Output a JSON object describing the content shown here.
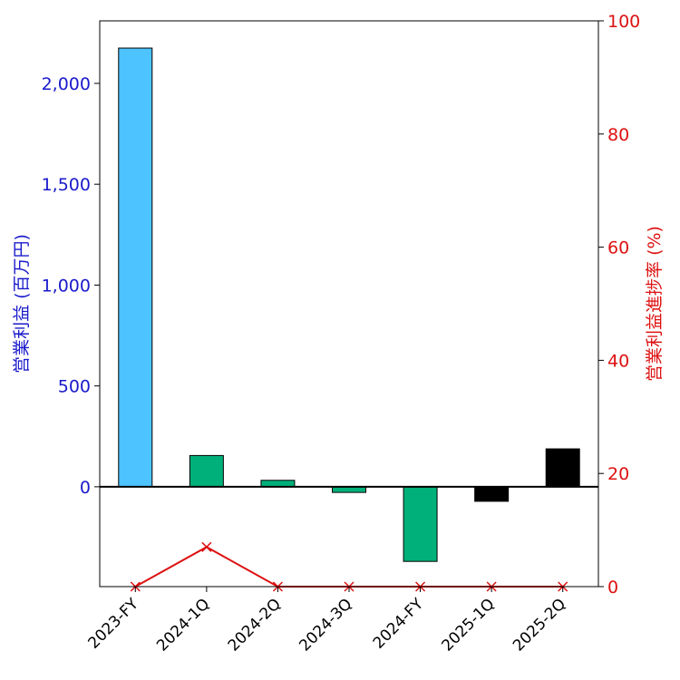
{
  "chart_data": {
    "type": "bar",
    "categories": [
      "2023-FY",
      "2024-1Q",
      "2024-2Q",
      "2024-3Q",
      "2024-FY",
      "2025-1Q",
      "2025-2Q"
    ],
    "series": [
      {
        "name": "営業利益",
        "values": [
          2175,
          155,
          32,
          -28,
          -370,
          -72,
          188
        ],
        "colors": [
          "#4dc3ff",
          "#00b07a",
          "#00b07a",
          "#00b07a",
          "#00b07a",
          "#000000",
          "#000000"
        ]
      },
      {
        "name": "営業利益進捗率",
        "type": "line",
        "axis": "right",
        "values": [
          0,
          7,
          0,
          0,
          0,
          0,
          0
        ],
        "color": "#dd1111"
      }
    ],
    "ylabel": "営業利益 (百万円)",
    "y2label": "営業利益進捗率 (%)",
    "ylim": [
      -495,
      2310
    ],
    "y2lim": [
      0,
      100
    ],
    "yticks": [
      {
        "value": 0,
        "label": "0"
      },
      {
        "value": 500,
        "label": "500"
      },
      {
        "value": 1000,
        "label": "1,000"
      },
      {
        "value": 1500,
        "label": "1,500"
      },
      {
        "value": 2000,
        "label": "2,000"
      }
    ],
    "y2ticks": [
      {
        "value": 0,
        "label": "0"
      },
      {
        "value": 20,
        "label": "20"
      },
      {
        "value": 40,
        "label": "40"
      },
      {
        "value": 60,
        "label": "60"
      },
      {
        "value": 80,
        "label": "80"
      },
      {
        "value": 100,
        "label": "100"
      }
    ],
    "left_axis_color": "#1a1acc",
    "right_axis_color": "#dd1111",
    "grid": false
  }
}
